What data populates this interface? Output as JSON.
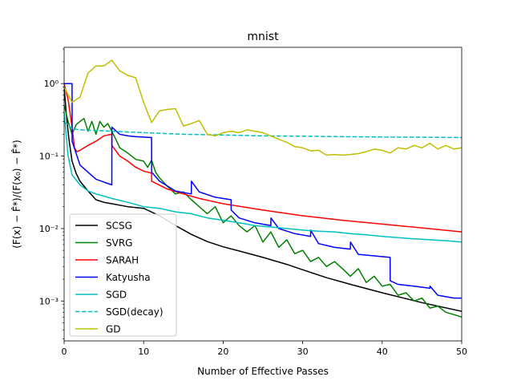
{
  "chart_data": {
    "type": "line",
    "title": "mnist",
    "xlabel": "Number of Effective Passes",
    "ylabel": "(F(x) − F̂*)/(F(x₀) − F̂*)",
    "xlim": [
      0,
      50
    ],
    "ylim_log10": [
      -3.55,
      0.5
    ],
    "yscale": "log",
    "xticks": [
      0,
      10,
      20,
      30,
      40,
      50
    ],
    "xtick_labels": [
      "0",
      "10",
      "20",
      "30",
      "40",
      "50"
    ],
    "yticks": [
      1,
      0.1,
      0.01,
      0.001
    ],
    "ytick_labels": [
      "10⁰",
      "10⁻¹",
      "10⁻²",
      "10⁻³"
    ],
    "legend_position": "lower-left",
    "series": [
      {
        "name": "SCSG",
        "color": "#000000",
        "style": "solid",
        "x": [
          0,
          0.3,
          0.6,
          1,
          1.5,
          2,
          3,
          4,
          5,
          6,
          8,
          10,
          12,
          14,
          16,
          18,
          20,
          22,
          25,
          28,
          30,
          33,
          36,
          40,
          45,
          50
        ],
        "y": [
          0.9,
          0.35,
          0.17,
          0.085,
          0.058,
          0.045,
          0.033,
          0.025,
          0.023,
          0.022,
          0.02,
          0.019,
          0.015,
          0.011,
          0.0083,
          0.0066,
          0.0056,
          0.0049,
          0.004,
          0.0032,
          0.0027,
          0.0021,
          0.0017,
          0.0013,
          0.00095,
          0.00072
        ]
      },
      {
        "name": "SVRG",
        "color": "#008000",
        "style": "solid",
        "x": [
          0,
          0.5,
          1,
          1.5,
          2,
          2.5,
          3,
          3.5,
          4,
          4.5,
          5,
          5.5,
          6,
          6.5,
          7,
          8,
          9,
          10,
          10.5,
          11,
          11.5,
          12,
          13,
          14,
          15,
          16,
          17,
          18,
          19,
          20,
          21,
          22,
          23,
          24,
          25,
          26,
          27,
          28,
          29,
          30,
          31,
          32,
          33,
          34,
          35,
          36,
          37,
          38,
          39,
          40,
          41,
          42,
          43,
          44,
          45,
          46,
          47,
          48,
          49,
          50
        ],
        "y": [
          0.5,
          0.3,
          0.2,
          0.27,
          0.3,
          0.33,
          0.22,
          0.3,
          0.2,
          0.3,
          0.25,
          0.28,
          0.22,
          0.17,
          0.13,
          0.11,
          0.09,
          0.085,
          0.07,
          0.088,
          0.06,
          0.05,
          0.038,
          0.03,
          0.032,
          0.025,
          0.02,
          0.016,
          0.02,
          0.012,
          0.015,
          0.011,
          0.009,
          0.011,
          0.0065,
          0.009,
          0.0055,
          0.007,
          0.0045,
          0.005,
          0.0035,
          0.004,
          0.003,
          0.0035,
          0.0028,
          0.0022,
          0.0028,
          0.0018,
          0.0022,
          0.0016,
          0.0017,
          0.0012,
          0.0013,
          0.001,
          0.0011,
          0.0008,
          0.00085,
          0.0007,
          0.00065,
          0.0006
        ]
      },
      {
        "name": "SARAH",
        "color": "#ff0000",
        "style": "solid",
        "x": [
          0,
          0.5,
          1,
          1.3,
          1.6,
          2,
          3,
          4,
          5,
          5.5,
          6,
          6.01,
          7,
          8,
          9,
          10,
          11,
          11.01,
          13,
          15,
          17,
          20,
          25,
          30,
          35,
          40,
          45,
          50
        ],
        "y": [
          1.0,
          0.6,
          0.25,
          0.13,
          0.115,
          0.12,
          0.14,
          0.16,
          0.19,
          0.195,
          0.2,
          0.14,
          0.1,
          0.085,
          0.07,
          0.062,
          0.058,
          0.045,
          0.035,
          0.03,
          0.026,
          0.022,
          0.018,
          0.015,
          0.013,
          0.0115,
          0.0102,
          0.009
        ]
      },
      {
        "name": "Katyusha",
        "color": "#0000ff",
        "style": "solid",
        "x": [
          0,
          1,
          1.01,
          2,
          4,
          6,
          6.01,
          7,
          8,
          9,
          11,
          11.01,
          12,
          14,
          16,
          16.01,
          17,
          19,
          21,
          21.01,
          22,
          24,
          26,
          26.01,
          27,
          29,
          31,
          31.01,
          32,
          34,
          36,
          36.01,
          37,
          39,
          41,
          41.01,
          42,
          44,
          46,
          46.01,
          47,
          49,
          50
        ],
        "y": [
          1.0,
          1.0,
          0.16,
          0.075,
          0.048,
          0.04,
          0.25,
          0.2,
          0.19,
          0.185,
          0.18,
          0.06,
          0.045,
          0.033,
          0.03,
          0.045,
          0.032,
          0.027,
          0.025,
          0.018,
          0.014,
          0.012,
          0.011,
          0.014,
          0.01,
          0.0085,
          0.0078,
          0.0095,
          0.0062,
          0.0055,
          0.0052,
          0.0065,
          0.0044,
          0.0042,
          0.004,
          0.0019,
          0.0017,
          0.0016,
          0.0015,
          0.0016,
          0.0012,
          0.0011,
          0.0011
        ]
      },
      {
        "name": "SGD",
        "color": "#00bfbf",
        "style": "solid",
        "x": [
          0,
          0.5,
          1,
          2,
          3,
          4,
          5,
          6,
          8,
          10,
          12,
          14,
          16,
          18,
          20,
          22,
          24,
          26,
          28,
          30,
          32,
          34,
          36,
          38,
          40,
          42,
          44,
          46,
          48,
          50
        ],
        "y": [
          0.4,
          0.1,
          0.055,
          0.04,
          0.033,
          0.03,
          0.028,
          0.026,
          0.023,
          0.02,
          0.019,
          0.017,
          0.016,
          0.014,
          0.013,
          0.012,
          0.011,
          0.0105,
          0.01,
          0.0095,
          0.0092,
          0.009,
          0.0085,
          0.0082,
          0.0078,
          0.0075,
          0.0072,
          0.007,
          0.0068,
          0.0065
        ]
      },
      {
        "name": "SGD(decay)",
        "color": "#00bfbf",
        "style": "dashed",
        "x": [
          0,
          1,
          2,
          4,
          6,
          10,
          15,
          20,
          25,
          30,
          35,
          40,
          45,
          50
        ],
        "y": [
          0.3,
          0.24,
          0.23,
          0.225,
          0.22,
          0.21,
          0.2,
          0.195,
          0.19,
          0.188,
          0.185,
          0.183,
          0.182,
          0.18
        ]
      },
      {
        "name": "GD",
        "color": "#bfbf00",
        "style": "solid",
        "x": [
          0,
          1,
          2,
          3,
          4,
          5,
          6,
          7,
          8,
          9,
          10,
          11,
          12,
          13,
          14,
          15,
          16,
          17,
          18,
          19,
          20,
          21,
          22,
          23,
          24,
          25,
          26,
          27,
          28,
          29,
          30,
          31,
          32,
          33,
          34,
          35,
          36,
          37,
          38,
          39,
          40,
          41,
          42,
          43,
          44,
          45,
          46,
          47,
          48,
          49,
          50
        ],
        "y": [
          0.9,
          0.55,
          0.65,
          1.4,
          1.75,
          1.75,
          2.1,
          1.5,
          1.3,
          1.2,
          0.55,
          0.29,
          0.42,
          0.44,
          0.45,
          0.26,
          0.28,
          0.31,
          0.2,
          0.19,
          0.21,
          0.22,
          0.21,
          0.23,
          0.22,
          0.21,
          0.19,
          0.17,
          0.155,
          0.135,
          0.13,
          0.118,
          0.12,
          0.103,
          0.105,
          0.103,
          0.105,
          0.108,
          0.115,
          0.125,
          0.12,
          0.11,
          0.13,
          0.125,
          0.14,
          0.13,
          0.15,
          0.125,
          0.14,
          0.125,
          0.13
        ]
      }
    ]
  }
}
